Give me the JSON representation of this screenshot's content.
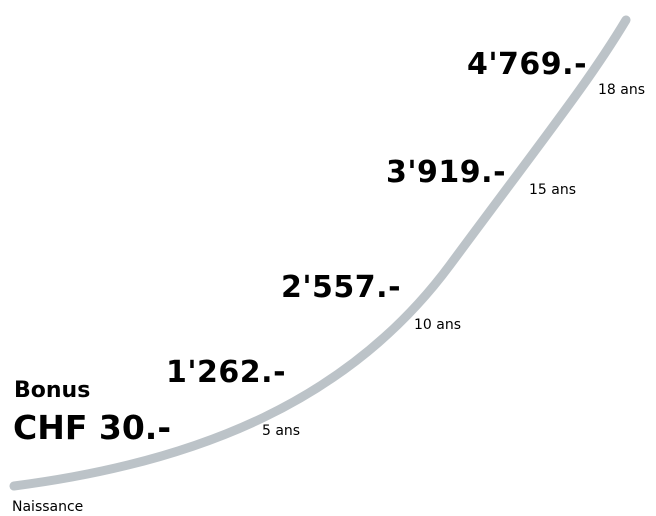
{
  "colors": {
    "curve": "#bcc3c8",
    "text": "#000000",
    "background": "#ffffff"
  },
  "bonus": {
    "label": "Bonus",
    "amount": "CHF 30.-"
  },
  "start_label": "Naissance",
  "milestones": [
    {
      "amount": "1'262.-",
      "age": "5 ans"
    },
    {
      "amount": "2'557.-",
      "age": "10 ans"
    },
    {
      "amount": "3'919.-",
      "age": "15 ans"
    },
    {
      "amount": "4'769.-",
      "age": "18 ans"
    }
  ]
}
